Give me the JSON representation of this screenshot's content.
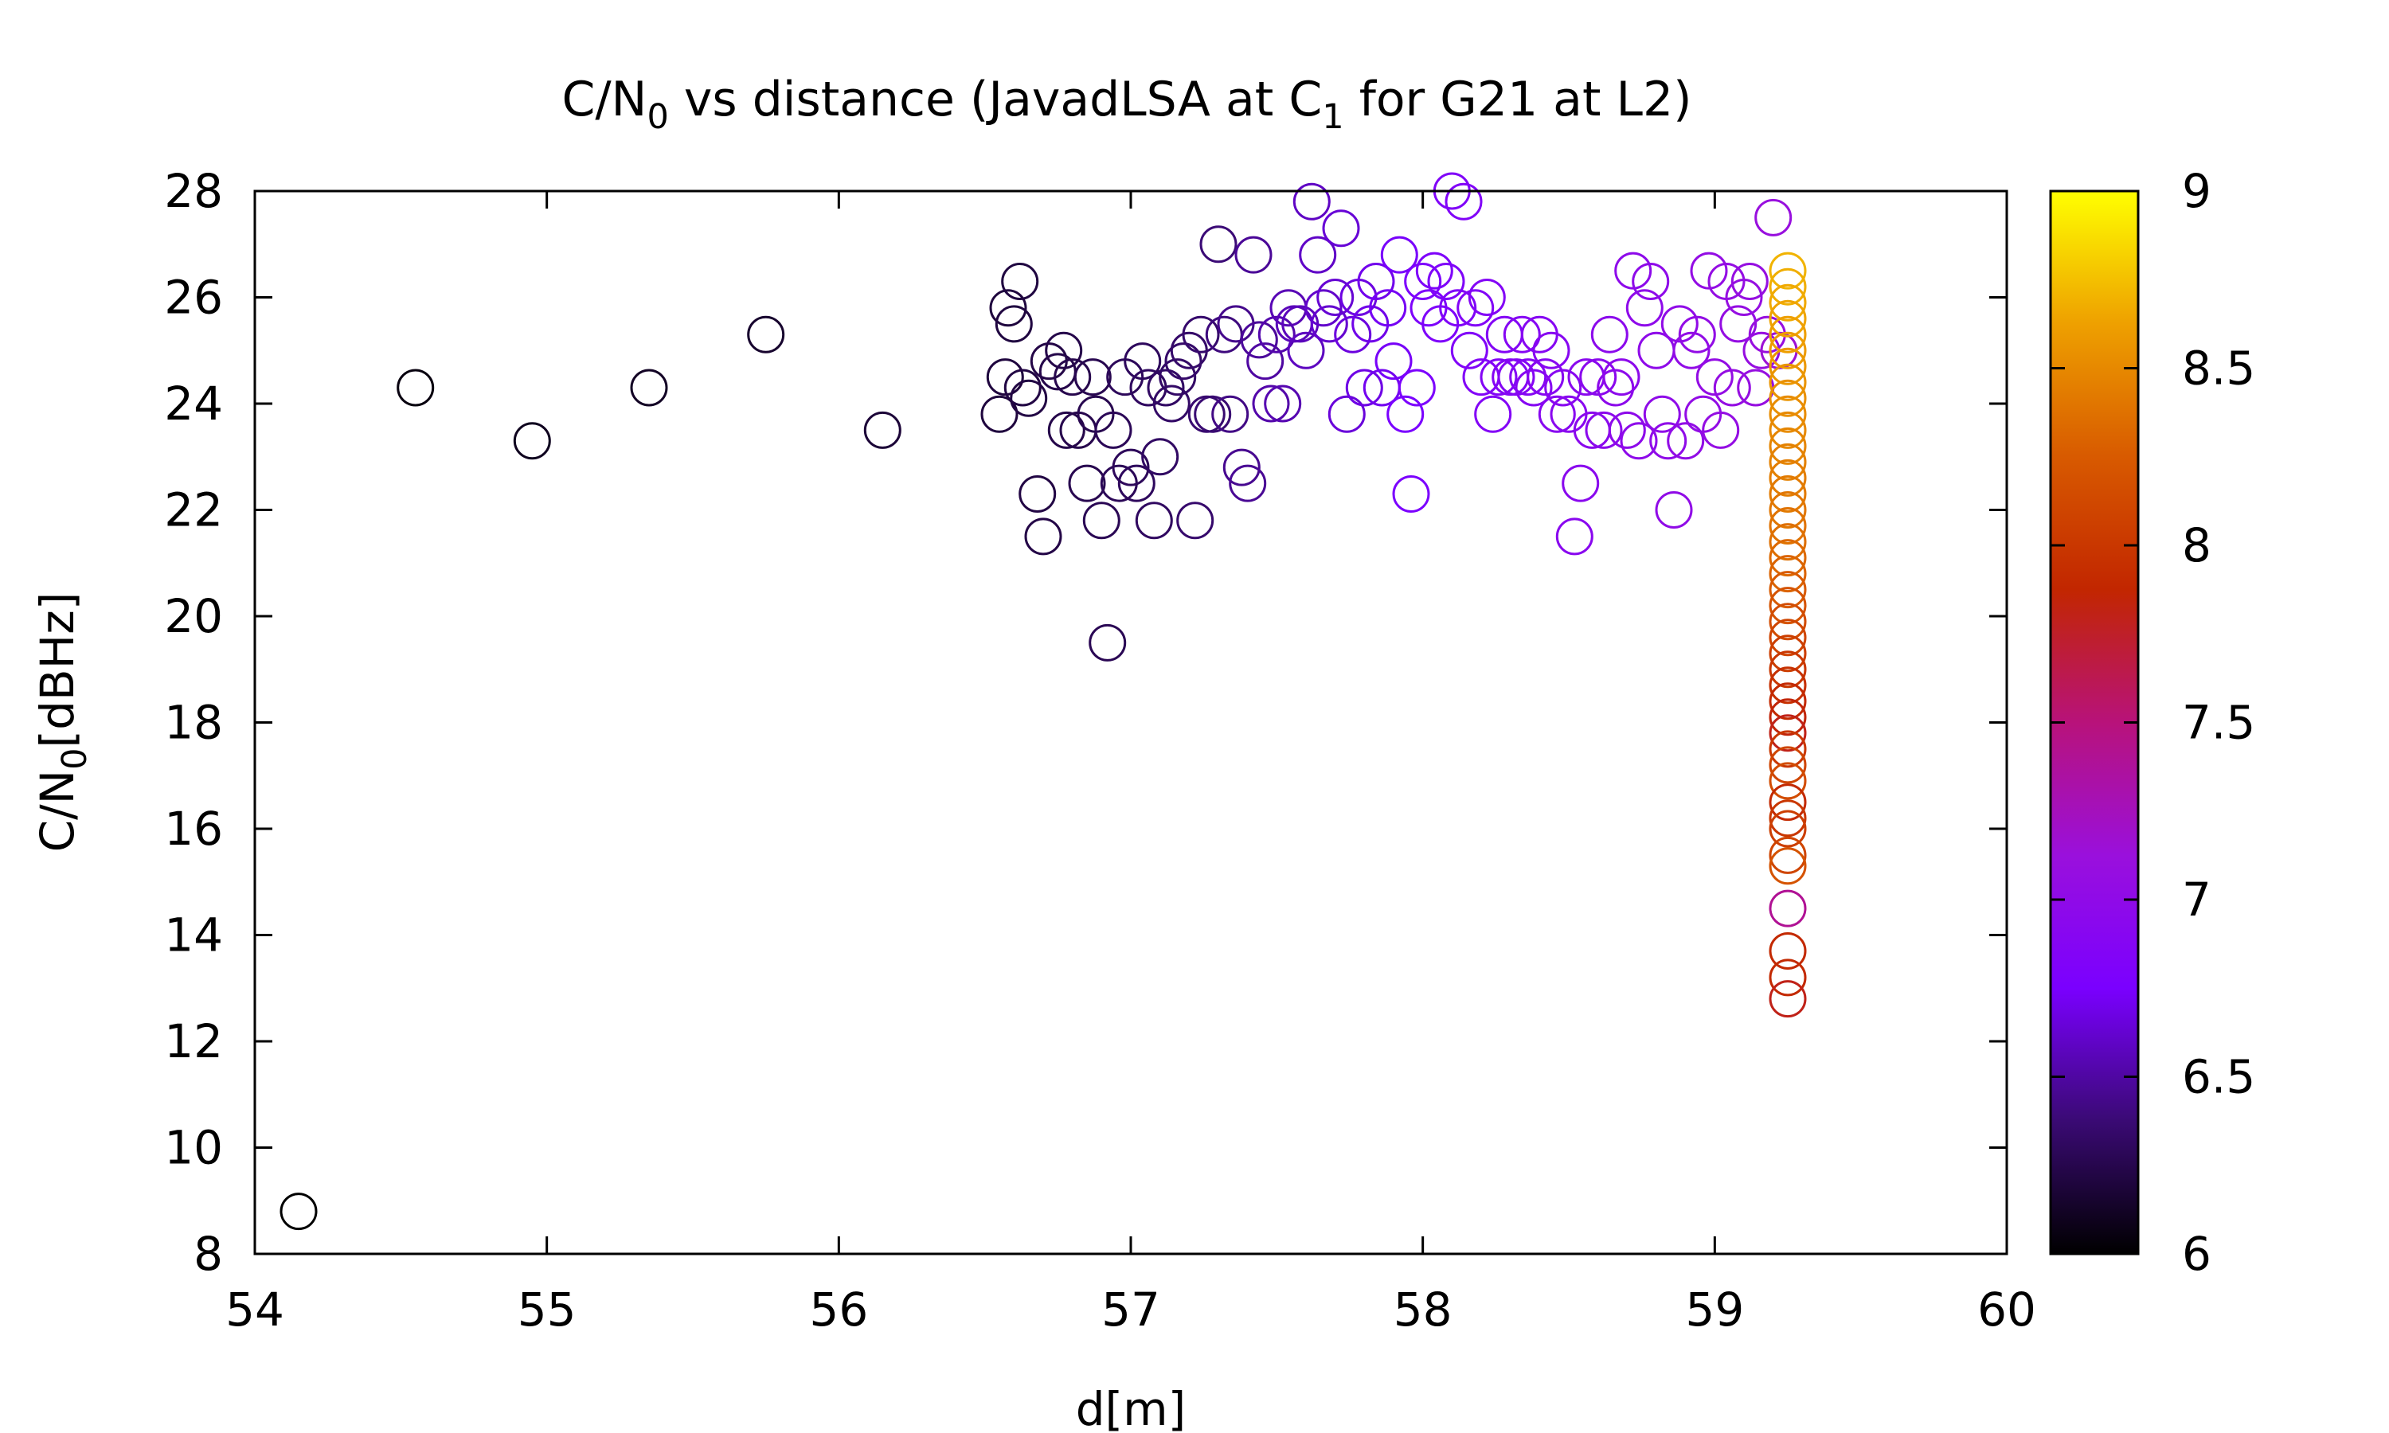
{
  "chart_data": {
    "type": "scatter",
    "title": {
      "part1": "C/N",
      "sub1": "0",
      "part2": " vs distance (JavadLSA at C",
      "sub2": "1",
      "part3": " for G21 at L2)"
    },
    "xlabel": "d[m]",
    "ylabel": {
      "main": "C/N",
      "sub": "0",
      "unit": "[dBHz]"
    },
    "xlim": [
      54,
      60
    ],
    "ylim": [
      8,
      28
    ],
    "xticks": [
      "54",
      "55",
      "56",
      "57",
      "58",
      "59",
      "60"
    ],
    "yticks": [
      "8",
      "10",
      "12",
      "14",
      "16",
      "18",
      "20",
      "22",
      "24",
      "26",
      "28"
    ],
    "colorbar": {
      "range": [
        6,
        9
      ],
      "ticks": [
        "6",
        "6.5",
        "7",
        "7.5",
        "8",
        "8.5",
        "9"
      ],
      "palette": [
        "#000000",
        "#3a0a74",
        "#7a00ff",
        "#9a10dc",
        "#b8127a",
        "#c22600",
        "#d85a00",
        "#eea000",
        "#ffff00"
      ]
    },
    "marker": "open-circle",
    "grid": false,
    "points": [
      [
        54.15,
        8.8,
        6.0
      ],
      [
        54.55,
        24.3,
        6.05
      ],
      [
        54.95,
        23.3,
        6.1
      ],
      [
        55.35,
        24.3,
        6.12
      ],
      [
        55.75,
        25.3,
        6.15
      ],
      [
        56.15,
        23.5,
        6.18
      ],
      [
        56.55,
        23.8,
        6.2
      ],
      [
        56.57,
        24.5,
        6.2
      ],
      [
        56.58,
        25.8,
        6.2
      ],
      [
        56.6,
        25.5,
        6.21
      ],
      [
        56.62,
        26.3,
        6.21
      ],
      [
        56.63,
        24.3,
        6.22
      ],
      [
        56.65,
        24.1,
        6.22
      ],
      [
        56.68,
        22.3,
        6.22
      ],
      [
        56.7,
        21.5,
        6.23
      ],
      [
        56.72,
        24.8,
        6.23
      ],
      [
        56.75,
        24.6,
        6.24
      ],
      [
        56.77,
        25.0,
        6.24
      ],
      [
        56.78,
        23.5,
        6.24
      ],
      [
        56.8,
        24.5,
        6.25
      ],
      [
        56.82,
        23.5,
        6.25
      ],
      [
        56.85,
        22.5,
        6.26
      ],
      [
        56.87,
        24.5,
        6.26
      ],
      [
        56.88,
        23.8,
        6.26
      ],
      [
        56.9,
        21.8,
        6.27
      ],
      [
        56.92,
        19.5,
        6.27
      ],
      [
        56.94,
        23.5,
        6.28
      ],
      [
        56.96,
        22.5,
        6.28
      ],
      [
        56.98,
        24.5,
        6.29
      ],
      [
        57.0,
        22.8,
        6.29
      ],
      [
        57.02,
        22.5,
        6.3
      ],
      [
        57.04,
        24.8,
        6.3
      ],
      [
        57.06,
        24.3,
        6.31
      ],
      [
        57.08,
        21.8,
        6.31
      ],
      [
        57.1,
        23.0,
        6.32
      ],
      [
        57.12,
        24.3,
        6.32
      ],
      [
        57.14,
        24.0,
        6.33
      ],
      [
        57.16,
        24.5,
        6.33
      ],
      [
        57.18,
        24.8,
        6.34
      ],
      [
        57.2,
        25.0,
        6.34
      ],
      [
        57.22,
        21.8,
        6.35
      ],
      [
        57.24,
        25.3,
        6.35
      ],
      [
        57.26,
        23.8,
        6.36
      ],
      [
        57.28,
        23.8,
        6.37
      ],
      [
        57.3,
        27.0,
        6.38
      ],
      [
        57.32,
        25.3,
        6.4
      ],
      [
        57.34,
        23.8,
        6.42
      ],
      [
        57.36,
        25.5,
        6.44
      ],
      [
        57.38,
        22.8,
        6.45
      ],
      [
        57.4,
        22.5,
        6.46
      ],
      [
        57.42,
        26.8,
        6.47
      ],
      [
        57.44,
        25.2,
        6.48
      ],
      [
        57.46,
        24.8,
        6.5
      ],
      [
        57.48,
        24.0,
        6.52
      ],
      [
        57.5,
        25.3,
        6.53
      ],
      [
        57.52,
        24.0,
        6.54
      ],
      [
        57.54,
        25.8,
        6.55
      ],
      [
        57.56,
        25.5,
        6.56
      ],
      [
        57.58,
        25.5,
        6.57
      ],
      [
        57.6,
        25.0,
        6.58
      ],
      [
        57.62,
        27.8,
        6.59
      ],
      [
        57.64,
        26.8,
        6.6
      ],
      [
        57.66,
        25.8,
        6.61
      ],
      [
        57.68,
        25.5,
        6.62
      ],
      [
        57.7,
        26.0,
        6.63
      ],
      [
        57.72,
        27.3,
        6.64
      ],
      [
        57.74,
        23.8,
        6.65
      ],
      [
        57.76,
        25.3,
        6.66
      ],
      [
        57.78,
        26.0,
        6.67
      ],
      [
        57.8,
        24.3,
        6.68
      ],
      [
        57.82,
        25.5,
        6.69
      ],
      [
        57.84,
        26.3,
        6.7
      ],
      [
        57.86,
        24.3,
        6.71
      ],
      [
        57.88,
        25.8,
        6.72
      ],
      [
        57.9,
        24.8,
        6.73
      ],
      [
        57.92,
        26.8,
        6.74
      ],
      [
        57.94,
        23.8,
        6.75
      ],
      [
        57.96,
        22.3,
        6.76
      ],
      [
        57.98,
        24.3,
        6.77
      ],
      [
        58.0,
        26.3,
        6.78
      ],
      [
        58.02,
        25.8,
        6.79
      ],
      [
        58.04,
        26.5,
        6.8
      ],
      [
        58.06,
        25.5,
        6.8
      ],
      [
        58.08,
        26.3,
        6.81
      ],
      [
        58.1,
        28.0,
        6.82
      ],
      [
        58.12,
        25.8,
        6.82
      ],
      [
        58.14,
        27.8,
        6.83
      ],
      [
        58.16,
        25.0,
        6.83
      ],
      [
        58.18,
        25.8,
        6.84
      ],
      [
        58.2,
        24.5,
        6.84
      ],
      [
        58.22,
        26.0,
        6.85
      ],
      [
        58.24,
        23.8,
        6.85
      ],
      [
        58.26,
        24.5,
        6.86
      ],
      [
        58.28,
        25.3,
        6.86
      ],
      [
        58.3,
        24.5,
        6.87
      ],
      [
        58.32,
        24.5,
        6.87
      ],
      [
        58.34,
        25.3,
        6.88
      ],
      [
        58.36,
        24.5,
        6.88
      ],
      [
        58.38,
        24.3,
        6.89
      ],
      [
        58.4,
        25.3,
        6.89
      ],
      [
        58.42,
        24.5,
        6.9
      ],
      [
        58.44,
        25.0,
        6.9
      ],
      [
        58.46,
        23.8,
        6.91
      ],
      [
        58.48,
        24.3,
        6.91
      ],
      [
        58.5,
        23.8,
        6.92
      ],
      [
        58.52,
        21.5,
        6.92
      ],
      [
        58.54,
        22.5,
        6.93
      ],
      [
        58.56,
        24.5,
        6.93
      ],
      [
        58.58,
        23.5,
        6.94
      ],
      [
        58.6,
        24.5,
        6.94
      ],
      [
        58.62,
        23.5,
        6.95
      ],
      [
        58.64,
        25.3,
        6.95
      ],
      [
        58.66,
        24.3,
        6.96
      ],
      [
        58.68,
        24.5,
        6.96
      ],
      [
        58.7,
        23.5,
        6.97
      ],
      [
        58.72,
        26.5,
        6.97
      ],
      [
        58.74,
        23.3,
        6.98
      ],
      [
        58.76,
        25.8,
        6.98
      ],
      [
        58.78,
        26.3,
        6.99
      ],
      [
        58.8,
        25.0,
        6.99
      ],
      [
        58.82,
        23.8,
        7.0
      ],
      [
        58.84,
        23.3,
        7.0
      ],
      [
        58.86,
        22.0,
        7.01
      ],
      [
        58.88,
        25.5,
        7.01
      ],
      [
        58.9,
        23.3,
        7.02
      ],
      [
        58.92,
        25.0,
        7.02
      ],
      [
        58.94,
        25.3,
        7.03
      ],
      [
        58.96,
        23.8,
        7.03
      ],
      [
        58.98,
        26.5,
        7.04
      ],
      [
        59.0,
        24.5,
        7.04
      ],
      [
        59.02,
        23.5,
        7.05
      ],
      [
        59.04,
        26.3,
        7.05
      ],
      [
        59.06,
        24.3,
        7.06
      ],
      [
        59.08,
        25.5,
        7.06
      ],
      [
        59.1,
        26.0,
        7.07
      ],
      [
        59.12,
        26.3,
        7.07
      ],
      [
        59.14,
        24.3,
        7.08
      ],
      [
        59.16,
        25.0,
        7.08
      ],
      [
        59.18,
        25.3,
        7.09
      ],
      [
        59.2,
        27.5,
        7.1
      ],
      [
        59.22,
        25.0,
        7.15
      ],
      [
        59.25,
        26.5,
        8.7
      ],
      [
        59.25,
        26.2,
        8.68
      ],
      [
        59.25,
        25.9,
        8.66
      ],
      [
        59.25,
        25.6,
        8.64
      ],
      [
        59.25,
        25.3,
        8.62
      ],
      [
        59.25,
        25.0,
        8.6
      ],
      [
        59.25,
        24.7,
        8.58
      ],
      [
        59.25,
        24.4,
        8.56
      ],
      [
        59.25,
        24.1,
        8.54
      ],
      [
        59.25,
        23.8,
        8.52
      ],
      [
        59.25,
        23.5,
        8.5
      ],
      [
        59.25,
        23.2,
        8.48
      ],
      [
        59.25,
        22.9,
        8.46
      ],
      [
        59.25,
        22.6,
        8.44
      ],
      [
        59.25,
        22.3,
        8.42
      ],
      [
        59.25,
        22.0,
        8.4
      ],
      [
        59.25,
        21.7,
        8.38
      ],
      [
        59.25,
        21.4,
        8.36
      ],
      [
        59.25,
        21.1,
        8.33
      ],
      [
        59.25,
        20.8,
        8.3
      ],
      [
        59.25,
        20.5,
        8.25
      ],
      [
        59.25,
        20.2,
        8.2
      ],
      [
        59.25,
        19.9,
        8.15
      ],
      [
        59.25,
        19.6,
        8.1
      ],
      [
        59.25,
        19.3,
        8.05
      ],
      [
        59.25,
        19.0,
        8.0
      ],
      [
        59.25,
        18.7,
        7.95
      ],
      [
        59.25,
        18.4,
        7.9
      ],
      [
        59.25,
        18.1,
        7.85
      ],
      [
        59.25,
        17.8,
        7.8
      ],
      [
        59.25,
        17.5,
        8.0
      ],
      [
        59.25,
        17.2,
        8.1
      ],
      [
        59.25,
        16.9,
        8.15
      ],
      [
        59.25,
        16.5,
        7.9
      ],
      [
        59.25,
        16.2,
        8.0
      ],
      [
        59.25,
        16.0,
        8.05
      ],
      [
        59.25,
        15.5,
        8.1
      ],
      [
        59.25,
        15.3,
        8.2
      ],
      [
        59.25,
        14.5,
        7.4
      ],
      [
        59.25,
        13.7,
        7.9
      ],
      [
        59.25,
        13.2,
        7.9
      ],
      [
        59.25,
        12.8,
        7.8
      ]
    ]
  }
}
